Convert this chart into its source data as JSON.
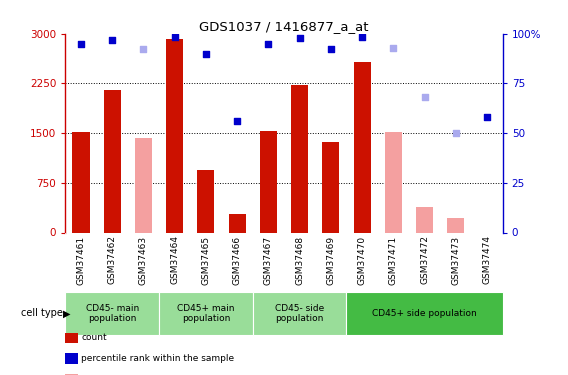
{
  "title": "GDS1037 / 1416877_a_at",
  "samples": [
    "GSM37461",
    "GSM37462",
    "GSM37463",
    "GSM37464",
    "GSM37465",
    "GSM37466",
    "GSM37467",
    "GSM37468",
    "GSM37469",
    "GSM37470",
    "GSM37471",
    "GSM37472",
    "GSM37473",
    "GSM37474"
  ],
  "count_present": [
    1520,
    2150,
    null,
    2920,
    950,
    280,
    1530,
    2220,
    1360,
    2580,
    null,
    null,
    null,
    null
  ],
  "count_absent": [
    null,
    null,
    1430,
    null,
    null,
    null,
    null,
    null,
    null,
    null,
    1510,
    380,
    220,
    null
  ],
  "rank_present": [
    95,
    97,
    null,
    98.5,
    90,
    56,
    95,
    98,
    92.5,
    98.5,
    null,
    null,
    null,
    58
  ],
  "rank_absent": [
    null,
    null,
    92.5,
    null,
    null,
    null,
    null,
    null,
    null,
    null,
    93,
    68,
    50,
    null
  ],
  "ylim_left": [
    0,
    3000
  ],
  "ylim_right": [
    0,
    100
  ],
  "yticks_left": [
    0,
    750,
    1500,
    2250,
    3000
  ],
  "yticks_right": [
    0,
    25,
    50,
    75,
    100
  ],
  "bar_color_present": "#cc1100",
  "bar_color_absent": "#f4a0a0",
  "dot_color_present": "#0000cc",
  "dot_color_absent": "#aaaaee",
  "bar_width": 0.55,
  "background_color": "#ffffff",
  "label_bg_color": "#cccccc",
  "group_defs": [
    {
      "start": 0,
      "end": 2,
      "label": "CD45- main\npopulation",
      "color": "#99dd99"
    },
    {
      "start": 3,
      "end": 5,
      "label": "CD45+ main\npopulation",
      "color": "#99dd99"
    },
    {
      "start": 6,
      "end": 8,
      "label": "CD45- side\npopulation",
      "color": "#99dd99"
    },
    {
      "start": 9,
      "end": 13,
      "label": "CD45+ side population",
      "color": "#44bb44"
    }
  ]
}
